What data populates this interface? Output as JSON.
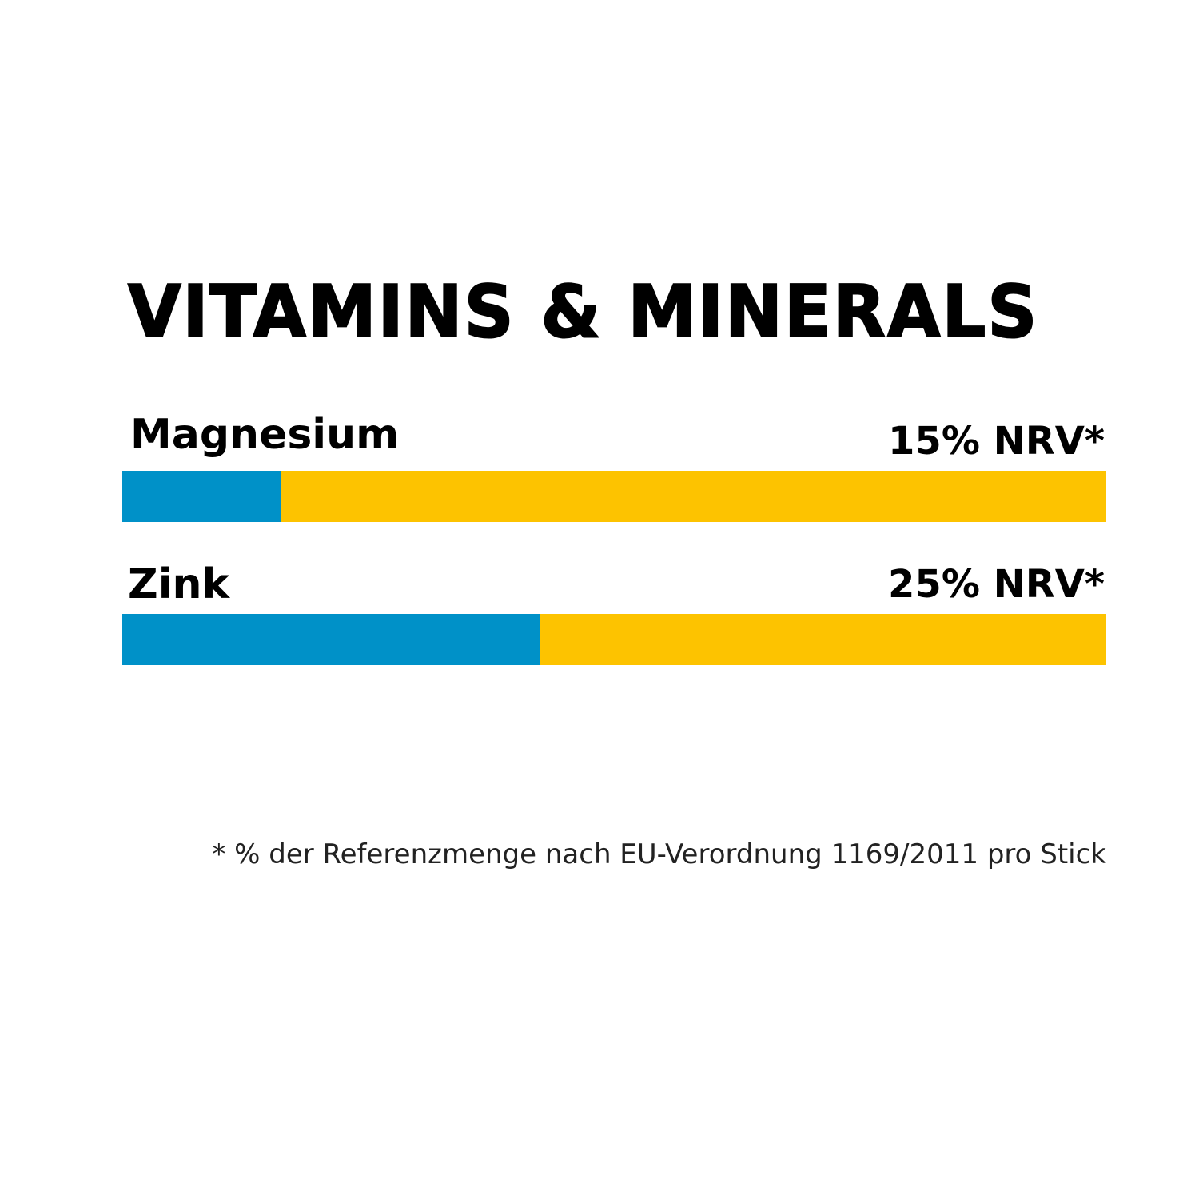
{
  "chart_data": {
    "type": "bar",
    "title": "VITAMINS & MINERALS",
    "rows": [
      {
        "label": "Magnesium",
        "value_label": "15% NRV*",
        "fill_fraction": 0.162
      },
      {
        "label": "Zink",
        "value_label": "25% NRV*",
        "fill_fraction": 0.425
      }
    ],
    "footnote": "* % der Referenzmenge nach EU-Verordnung 1169/2011 pro Stick",
    "colors": {
      "fill": "#0091C8",
      "track": "#FDC300"
    }
  }
}
